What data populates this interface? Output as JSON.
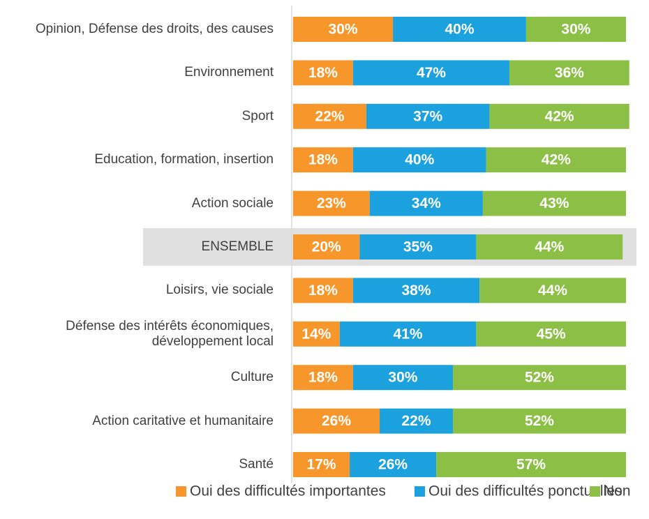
{
  "chart_data": {
    "type": "stacked_barh",
    "categories": [
      "Opinion, Défense des droits, des causes",
      "Environnement",
      "Sport",
      "Education, formation, insertion",
      "Action sociale",
      "ENSEMBLE",
      "Loisirs, vie sociale",
      "Défense des intérêts économiques, développement local",
      "Culture",
      "Action caritative et humanitaire",
      "Santé"
    ],
    "highlight": "ENSEMBLE",
    "xlim": [
      0,
      100
    ],
    "series": [
      {
        "name": "Oui des difficultés importantes",
        "color": "#f7962b",
        "values": [
          30,
          18,
          22,
          18,
          23,
          20,
          18,
          14,
          18,
          26,
          17
        ],
        "value_labels": [
          "30%",
          "18%",
          "22%",
          "18%",
          "23%",
          "20%",
          "18%",
          "14%",
          "18%",
          "26%",
          "17%"
        ]
      },
      {
        "name": "Oui des difficultés ponctuelles",
        "color": "#1ba1de",
        "values": [
          40,
          47,
          37,
          40,
          34,
          35,
          38,
          41,
          30,
          22,
          26
        ],
        "value_labels": [
          "40%",
          "47%",
          "37%",
          "40%",
          "34%",
          "35%",
          "38%",
          "41%",
          "30%",
          "22%",
          "26%"
        ]
      },
      {
        "name": "Non",
        "color": "#8cbf45",
        "values": [
          30,
          36,
          42,
          42,
          43,
          44,
          44,
          45,
          52,
          52,
          57
        ],
        "value_labels": [
          "30%",
          "36%",
          "42%",
          "42%",
          "43%",
          "44%",
          "44%",
          "45%",
          "52%",
          "52%",
          "57%"
        ]
      }
    ]
  }
}
